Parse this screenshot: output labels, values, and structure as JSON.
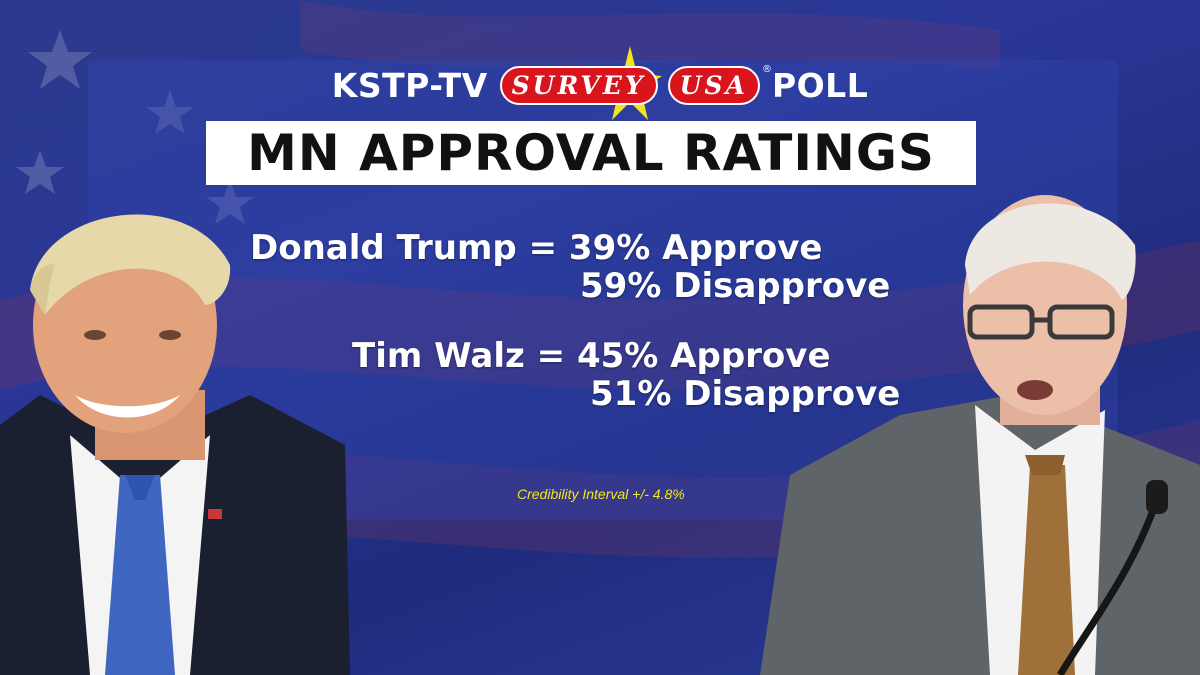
{
  "header": {
    "station": "KSTP-TV",
    "logo_left": "SURVEY",
    "logo_right": "USA",
    "logo_mark": "®",
    "poll_word": "POLL"
  },
  "title": "MN APPROVAL RATINGS",
  "ratings": [
    {
      "name": "Donald Trump",
      "approve": 39,
      "disapprove": 59,
      "line1": "Donald Trump = 39% Approve",
      "line2": "59% Disapprove"
    },
    {
      "name": "Tim Walz",
      "approve": 45,
      "disapprove": 51,
      "line1": "Tim Walz = 45% Approve",
      "line2": "51% Disapprove"
    }
  ],
  "footnote": "Credibility Interval +/- 4.8%",
  "colors": {
    "background": "#2a3797",
    "title_bar": "#ffffff",
    "logo_red": "#d9141c",
    "logo_star": "#f3e41d",
    "footnote": "#f1e81c"
  },
  "images": {
    "left": "trump-portrait",
    "right": "walz-portrait-with-microphone"
  }
}
